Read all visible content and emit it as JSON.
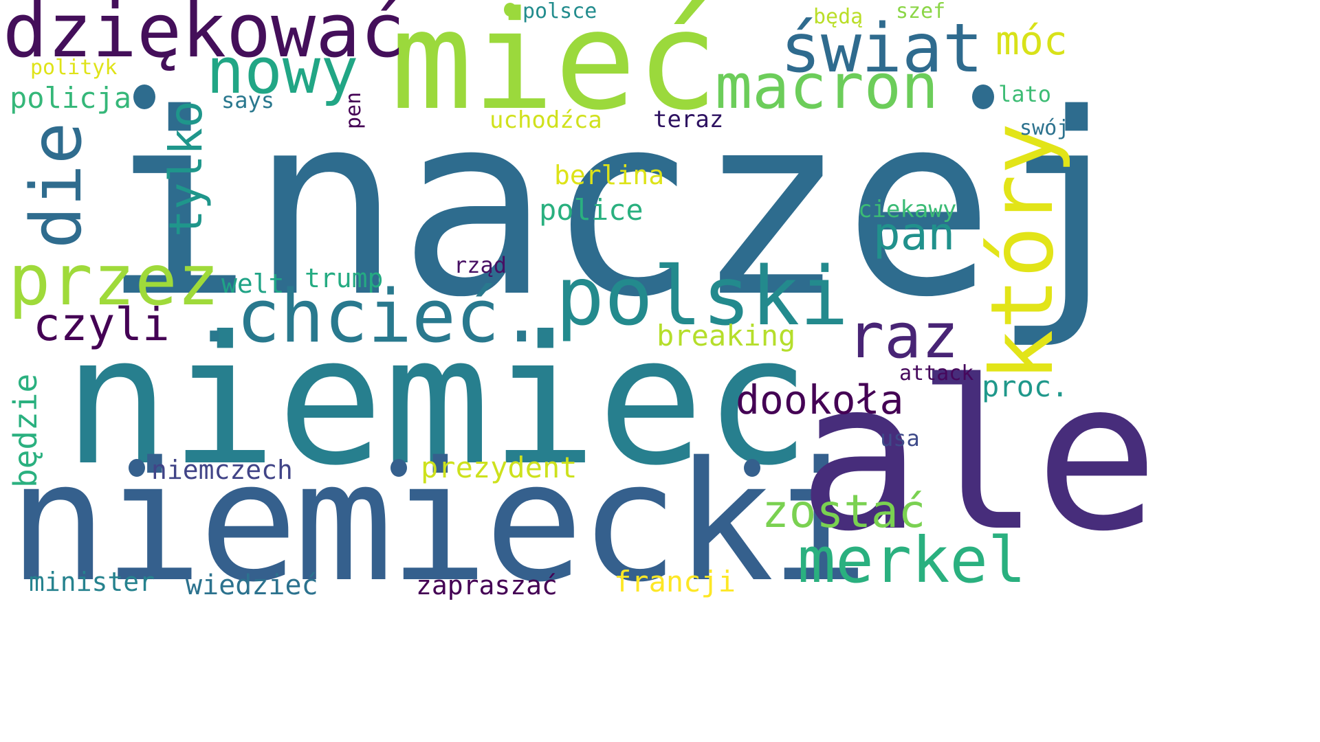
{
  "word_cloud": {
    "background": "#ffffff",
    "words": [
      {
        "text": "inaczej",
        "color": "#2e6c8e",
        "rotated": false
      },
      {
        "text": "niemiec",
        "color": "#277f8e",
        "rotated": false
      },
      {
        "text": "niemiecki",
        "color": "#35608d",
        "rotated": false
      },
      {
        "text": "ale",
        "color": "#472d7b",
        "rotated": false
      },
      {
        "text": "mieć",
        "color": "#9bd93c",
        "rotated": false
      },
      {
        "text": "dziękować",
        "color": "#440f5a",
        "rotated": false
      },
      {
        "text": "który",
        "color": "#e2e418",
        "rotated": true
      },
      {
        "text": "polski",
        "color": "#238a8d",
        "rotated": false
      },
      {
        "text": ".chcieć.",
        "color": "#29798e",
        "rotated": false
      },
      {
        "text": "świat",
        "color": "#2f6b8e",
        "rotated": false
      },
      {
        "text": "macron",
        "color": "#6ccd5a",
        "rotated": false
      },
      {
        "text": "nowy",
        "color": "#21a685",
        "rotated": false
      },
      {
        "text": "przez",
        "color": "#9fda3a",
        "rotated": false
      },
      {
        "text": "die",
        "color": "#2f6c8e",
        "rotated": true
      },
      {
        "text": "merkel",
        "color": "#2ab07f",
        "rotated": false
      },
      {
        "text": "raz",
        "color": "#482475",
        "rotated": false
      },
      {
        "text": "tylko",
        "color": "#1f968b",
        "rotated": true
      },
      {
        "text": "zostać",
        "color": "#7ad151",
        "rotated": false
      },
      {
        "text": "czyli",
        "color": "#440154",
        "rotated": false
      },
      {
        "text": "pan",
        "color": "#21918c",
        "rotated": false
      },
      {
        "text": "dookoła",
        "color": "#440154",
        "rotated": false
      },
      {
        "text": "móc",
        "color": "#d8e219",
        "rotated": false
      },
      {
        "text": "będzie",
        "color": "#2ab07f",
        "rotated": true
      },
      {
        "text": "breaking",
        "color": "#b5de2b",
        "rotated": false
      },
      {
        "text": "policja",
        "color": "#35b779",
        "rotated": false
      },
      {
        "text": "police",
        "color": "#2ab07f",
        "rotated": false
      },
      {
        "text": "prezydent",
        "color": "#cde11d",
        "rotated": false
      },
      {
        "text": "niemczech",
        "color": "#414487",
        "rotated": false
      },
      {
        "text": "francji",
        "color": "#fde725",
        "rotated": false
      },
      {
        "text": "wiedzieć",
        "color": "#2c728e",
        "rotated": false
      },
      {
        "text": "minister",
        "color": "#26828e",
        "rotated": false
      },
      {
        "text": "zapraszać",
        "color": "#440154",
        "rotated": false
      },
      {
        "text": "berlina",
        "color": "#dde318",
        "rotated": false
      },
      {
        "text": "proc.",
        "color": "#1f988b",
        "rotated": false
      },
      {
        "text": "trump",
        "color": "#25ab82",
        "rotated": false
      },
      {
        "text": "welt",
        "color": "#20a386",
        "rotated": false
      },
      {
        "text": "ciekawy",
        "color": "#3bbb75",
        "rotated": false
      },
      {
        "text": "teraz",
        "color": "#2d1160",
        "rotated": false
      },
      {
        "text": "uchodźca",
        "color": "#d0e11c",
        "rotated": false
      },
      {
        "text": "rząd",
        "color": "#471063",
        "rotated": false
      },
      {
        "text": "attack",
        "color": "#46085c",
        "rotated": false
      },
      {
        "text": "usa",
        "color": "#3e4a89",
        "rotated": false
      },
      {
        "text": "lato",
        "color": "#3dbc74",
        "rotated": false
      },
      {
        "text": "says",
        "color": "#2a788e",
        "rotated": false
      },
      {
        "text": "polityk",
        "color": "#dfe318",
        "rotated": false
      },
      {
        "text": "polsce",
        "color": "#228c8d",
        "rotated": false
      },
      {
        "text": "będą",
        "color": "#bade28",
        "rotated": false
      },
      {
        "text": "szef",
        "color": "#8bd646",
        "rotated": false
      },
      {
        "text": "swój",
        "color": "#2c728e",
        "rotated": false
      },
      {
        "text": "pen",
        "color": "#440154",
        "rotated": true
      }
    ],
    "dot_color_main": "#2e6c8e",
    "dot_color_mid": "#277f8e",
    "dot_color_low": "#35608d",
    "dot_color_top": "#9bd93c"
  }
}
